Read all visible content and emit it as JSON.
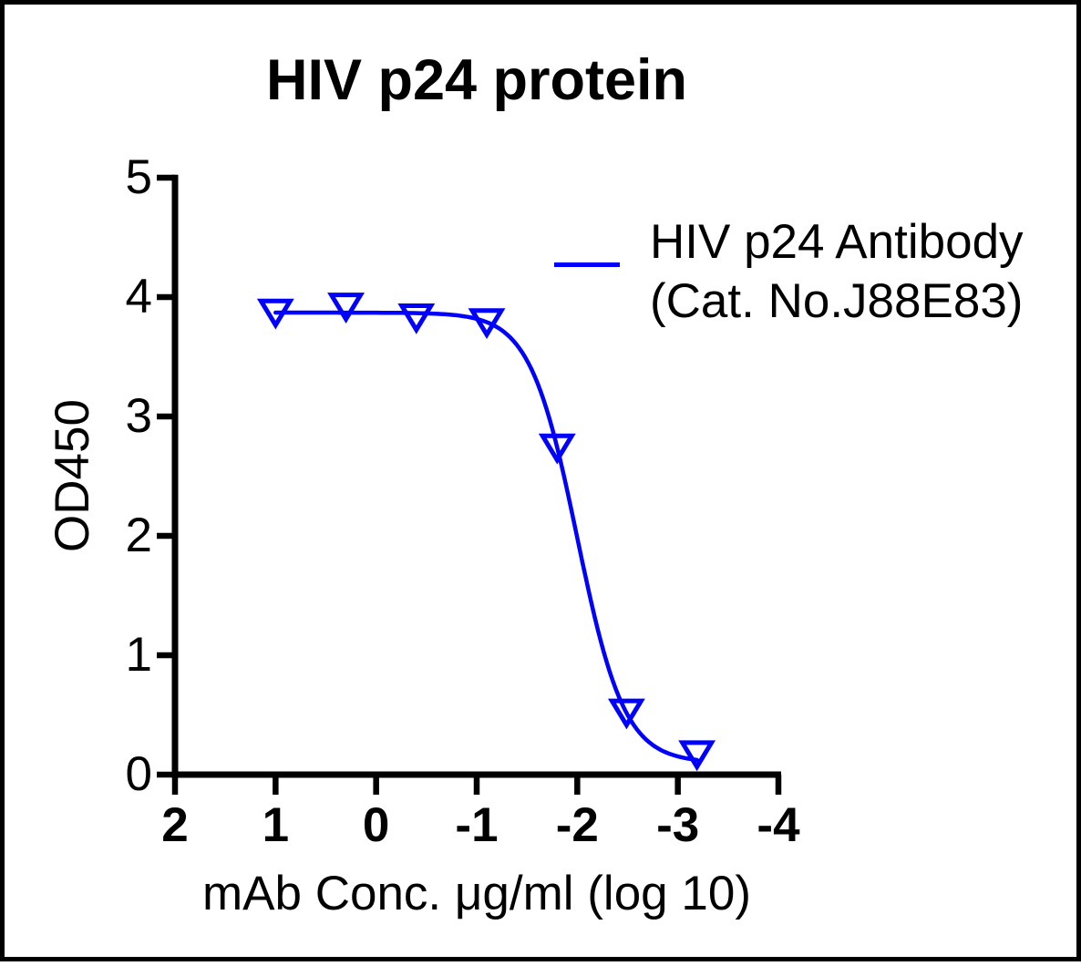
{
  "chart": {
    "title": "HIV p24 protein",
    "xlabel": "mAb Conc. μg/ml (log 10)",
    "ylabel": "OD450"
  },
  "legend": {
    "line1": "HIV p24 Antibody",
    "line2": "(Cat. No.J88E83)"
  },
  "chart_data": {
    "type": "scatter",
    "title": "HIV p24 protein",
    "xlabel": "mAb Conc. μg/ml (log 10)",
    "ylabel": "OD450",
    "x_axis": {
      "ticks": [
        2,
        1,
        0,
        -1,
        -2,
        -3,
        -4
      ],
      "range": [
        2,
        -4
      ],
      "reversed": true
    },
    "y_axis": {
      "ticks": [
        0,
        1,
        2,
        3,
        4,
        5
      ],
      "range": [
        0,
        5
      ]
    },
    "grid": false,
    "legend_position": "upper-right",
    "series": [
      {
        "name": "HIV p24 Antibody (Cat. No.J88E83)",
        "color": "#0000FF",
        "marker": "open-triangle-down",
        "points": [
          {
            "x": 1.0,
            "y": 3.88
          },
          {
            "x": 0.3,
            "y": 3.93
          },
          {
            "x": -0.4,
            "y": 3.84
          },
          {
            "x": -1.1,
            "y": 3.8
          },
          {
            "x": -1.8,
            "y": 2.75
          },
          {
            "x": -2.49,
            "y": 0.53
          },
          {
            "x": -3.19,
            "y": 0.18
          }
        ],
        "fit_curve_4pl": {
          "top": 3.87,
          "bottom": 0.1,
          "logEC50": -2.0,
          "hillslope": 1.85,
          "x_start": 1.0,
          "x_end": -3.19
        }
      }
    ]
  }
}
